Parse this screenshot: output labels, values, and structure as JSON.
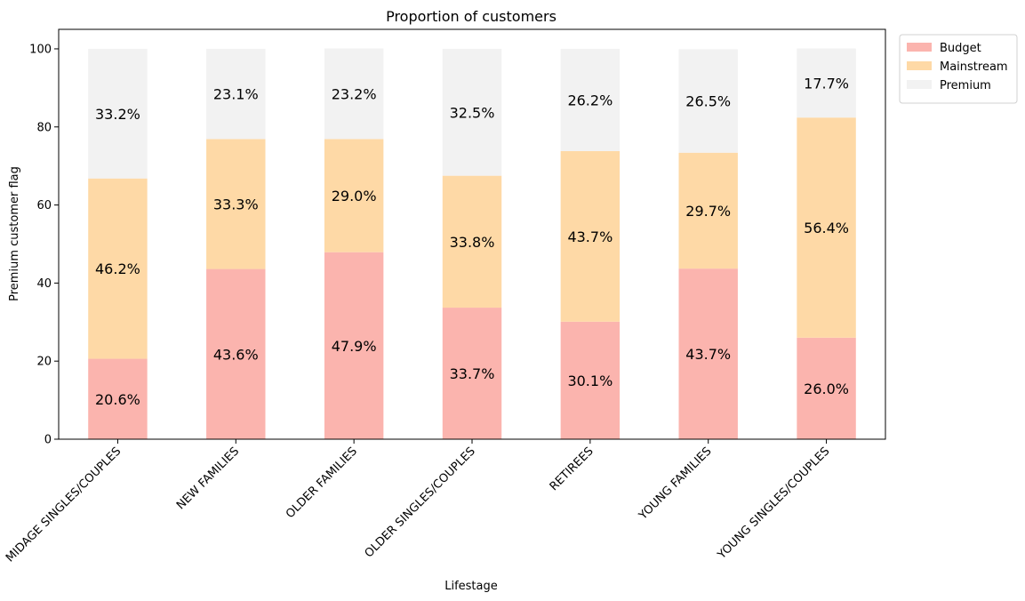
{
  "chart_data": {
    "type": "bar",
    "stacked": true,
    "title": "Proportion of customers",
    "xlabel": "Lifestage",
    "ylabel": "Premium customer flag",
    "ylim": [
      0,
      105
    ],
    "yticks": [
      0,
      20,
      40,
      60,
      80,
      100
    ],
    "grid": false,
    "legend_position": "outside-top-right",
    "categories": [
      "MIDAGE SINGLES/COUPLES",
      "NEW FAMILIES",
      "OLDER FAMILIES",
      "OLDER SINGLES/COUPLES",
      "RETIREES",
      "YOUNG FAMILIES",
      "YOUNG SINGLES/COUPLES"
    ],
    "series": [
      {
        "name": "Budget",
        "color": "#fbb4ae",
        "values": [
          20.6,
          43.6,
          47.9,
          33.7,
          30.1,
          43.7,
          26.0
        ],
        "labels": [
          "20.6%",
          "43.6%",
          "47.9%",
          "33.7%",
          "30.1%",
          "43.7%",
          "26.0%"
        ]
      },
      {
        "name": "Mainstream",
        "color": "#fed9a6",
        "values": [
          46.2,
          33.3,
          29.0,
          33.8,
          43.7,
          29.7,
          56.4
        ],
        "labels": [
          "46.2%",
          "33.3%",
          "29.0%",
          "33.8%",
          "43.7%",
          "29.7%",
          "56.4%"
        ]
      },
      {
        "name": "Premium",
        "color": "#f2f2f2",
        "values": [
          33.2,
          23.1,
          23.2,
          32.5,
          26.2,
          26.5,
          17.7
        ],
        "labels": [
          "33.2%",
          "23.1%",
          "23.2%",
          "32.5%",
          "26.2%",
          "26.5%",
          "17.7%"
        ]
      }
    ]
  }
}
